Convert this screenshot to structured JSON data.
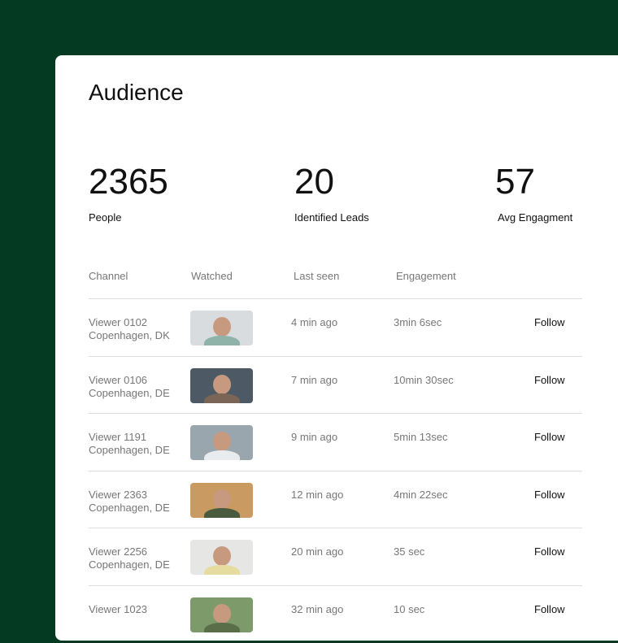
{
  "title": "Audience",
  "stats": [
    {
      "value": "2365",
      "label": "People"
    },
    {
      "value": "20",
      "label": "Identified Leads"
    },
    {
      "value": "57",
      "label": "Avg Engagment"
    }
  ],
  "columns": [
    "Channel",
    "Watched",
    "Last seen",
    "Engagement"
  ],
  "rows": [
    {
      "name": "Viewer 0102",
      "location": "Copenhagen, DK",
      "last_seen": "4 min ago",
      "engagement": "3min 6sec",
      "action": "Follow",
      "thumb_bg": "#d9dcdf",
      "thumb_body": "#8fb3a8"
    },
    {
      "name": "Viewer 0106",
      "location": "Copenhagen, DE",
      "last_seen": "7 min ago",
      "engagement": "10min 30sec",
      "action": "Follow",
      "thumb_bg": "#4d5a66",
      "thumb_body": "#7a6556"
    },
    {
      "name": "Viewer 1191",
      "location": "Copenhagen, DE",
      "last_seen": "9 min ago",
      "engagement": "5min 13sec",
      "action": "Follow",
      "thumb_bg": "#9aa6ae",
      "thumb_body": "#e8ecef"
    },
    {
      "name": "Viewer 2363",
      "location": "Copenhagen, DE",
      "last_seen": "12 min ago",
      "engagement": "4min 22sec",
      "action": "Follow",
      "thumb_bg": "#c99a62",
      "thumb_body": "#4a5a3e"
    },
    {
      "name": "Viewer 2256",
      "location": "Copenhagen, DE",
      "last_seen": "20 min ago",
      "engagement": "35 sec",
      "action": "Follow",
      "thumb_bg": "#e6e6e4",
      "thumb_body": "#e6dca0"
    },
    {
      "name": "Viewer 1023",
      "location": "",
      "last_seen": "32 min ago",
      "engagement": "10 sec",
      "action": "Follow",
      "thumb_bg": "#7d9a6a",
      "thumb_body": "#5a6e4a"
    }
  ]
}
